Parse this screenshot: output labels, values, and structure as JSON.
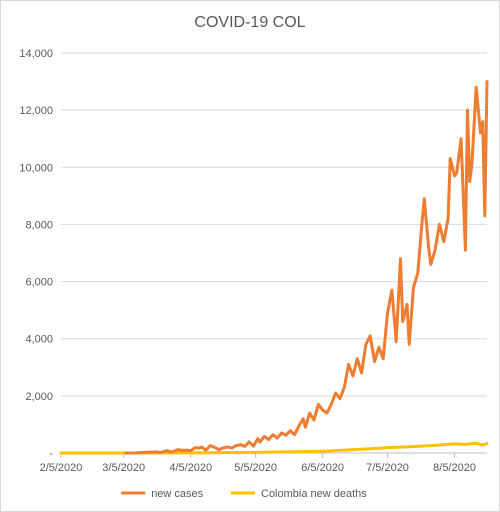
{
  "chart_data": {
    "type": "line",
    "title": "COVID-19 COL",
    "xlabel": "",
    "ylabel": "",
    "ylim": [
      0,
      14000
    ],
    "y_ticks": [
      0,
      2000,
      4000,
      6000,
      8000,
      10000,
      12000,
      14000
    ],
    "y_tick_labels": [
      "-",
      "2,000",
      "4,000",
      "6,000",
      "8,000",
      "10,000",
      "12,000",
      "14,000"
    ],
    "x_ticks": [
      "2/5/2020",
      "3/5/2020",
      "4/5/2020",
      "5/5/2020",
      "6/5/2020",
      "7/5/2020",
      "8/5/2020"
    ],
    "x_range": [
      "2/5/2020",
      "8/20/2020"
    ],
    "grid": "horizontal",
    "legend_position": "bottom",
    "series": [
      {
        "name": "new cases",
        "color": "#ED7D31",
        "points": [
          [
            "3/6/2020",
            0
          ],
          [
            "3/10/2020",
            1
          ],
          [
            "3/15/2020",
            20
          ],
          [
            "3/20/2020",
            40
          ],
          [
            "3/22/2020",
            20
          ],
          [
            "3/25/2020",
            80
          ],
          [
            "3/27/2020",
            30
          ],
          [
            "3/30/2020",
            120
          ],
          [
            "4/1/2020",
            90
          ],
          [
            "4/3/2020",
            100
          ],
          [
            "4/5/2020",
            80
          ],
          [
            "4/7/2020",
            190
          ],
          [
            "4/9/2020",
            170
          ],
          [
            "4/10/2020",
            210
          ],
          [
            "4/12/2020",
            100
          ],
          [
            "4/14/2020",
            260
          ],
          [
            "4/16/2020",
            200
          ],
          [
            "4/18/2020",
            120
          ],
          [
            "4/20/2020",
            180
          ],
          [
            "4/22/2020",
            210
          ],
          [
            "4/24/2020",
            170
          ],
          [
            "4/26/2020",
            260
          ],
          [
            "4/28/2020",
            290
          ],
          [
            "4/30/2020",
            230
          ],
          [
            "5/2/2020",
            390
          ],
          [
            "5/4/2020",
            240
          ],
          [
            "5/6/2020",
            500
          ],
          [
            "5/7/2020",
            380
          ],
          [
            "5/9/2020",
            580
          ],
          [
            "5/11/2020",
            470
          ],
          [
            "5/13/2020",
            640
          ],
          [
            "5/15/2020",
            520
          ],
          [
            "5/17/2020",
            700
          ],
          [
            "5/19/2020",
            620
          ],
          [
            "5/21/2020",
            780
          ],
          [
            "5/23/2020",
            640
          ],
          [
            "5/25/2020",
            950
          ],
          [
            "5/27/2020",
            1200
          ],
          [
            "5/28/2020",
            900
          ],
          [
            "5/30/2020",
            1400
          ],
          [
            "6/1/2020",
            1150
          ],
          [
            "6/3/2020",
            1700
          ],
          [
            "6/5/2020",
            1500
          ],
          [
            "6/7/2020",
            1400
          ],
          [
            "6/9/2020",
            1700
          ],
          [
            "6/11/2020",
            2100
          ],
          [
            "6/13/2020",
            1900
          ],
          [
            "6/15/2020",
            2300
          ],
          [
            "6/17/2020",
            3100
          ],
          [
            "6/19/2020",
            2700
          ],
          [
            "6/21/2020",
            3300
          ],
          [
            "6/23/2020",
            2800
          ],
          [
            "6/25/2020",
            3800
          ],
          [
            "6/27/2020",
            4100
          ],
          [
            "6/29/2020",
            3200
          ],
          [
            "7/1/2020",
            3700
          ],
          [
            "7/3/2020",
            3300
          ],
          [
            "7/5/2020",
            4900
          ],
          [
            "7/7/2020",
            5700
          ],
          [
            "7/9/2020",
            3900
          ],
          [
            "7/11/2020",
            6800
          ],
          [
            "7/12/2020",
            4600
          ],
          [
            "7/14/2020",
            5200
          ],
          [
            "7/15/2020",
            3800
          ],
          [
            "7/17/2020",
            5800
          ],
          [
            "7/19/2020",
            6300
          ],
          [
            "7/21/2020",
            8100
          ],
          [
            "7/22/2020",
            8900
          ],
          [
            "7/24/2020",
            7200
          ],
          [
            "7/25/2020",
            6600
          ],
          [
            "7/27/2020",
            7100
          ],
          [
            "7/29/2020",
            8000
          ],
          [
            "7/31/2020",
            7400
          ],
          [
            "8/2/2020",
            8200
          ],
          [
            "8/3/2020",
            10300
          ],
          [
            "8/5/2020",
            9700
          ],
          [
            "8/6/2020",
            9800
          ],
          [
            "8/8/2020",
            11000
          ],
          [
            "8/10/2020",
            7100
          ],
          [
            "8/11/2020",
            12000
          ],
          [
            "8/12/2020",
            9500
          ],
          [
            "8/13/2020",
            10100
          ],
          [
            "8/15/2020",
            12800
          ],
          [
            "8/17/2020",
            11200
          ],
          [
            "8/18/2020",
            11600
          ],
          [
            "8/19/2020",
            8300
          ],
          [
            "8/20/2020",
            13000
          ]
        ]
      },
      {
        "name": "Colombia new deaths",
        "color": "#FFC000",
        "points": [
          [
            "2/5/2020",
            0
          ],
          [
            "3/5/2020",
            0
          ],
          [
            "4/5/2020",
            5
          ],
          [
            "5/5/2020",
            20
          ],
          [
            "6/5/2020",
            60
          ],
          [
            "6/15/2020",
            100
          ],
          [
            "6/25/2020",
            140
          ],
          [
            "7/5/2020",
            190
          ],
          [
            "7/15/2020",
            220
          ],
          [
            "7/25/2020",
            260
          ],
          [
            "8/5/2020",
            320
          ],
          [
            "8/10/2020",
            300
          ],
          [
            "8/15/2020",
            340
          ],
          [
            "8/18/2020",
            280
          ],
          [
            "8/20/2020",
            330
          ]
        ]
      }
    ]
  }
}
